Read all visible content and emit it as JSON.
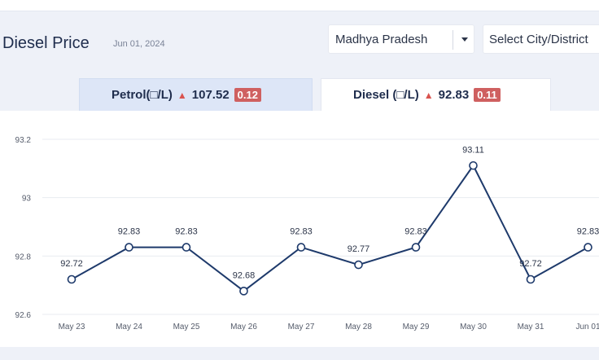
{
  "header": {
    "title": "Diesel Price",
    "date": "Jun 01, 2024"
  },
  "filters": {
    "state": "Madhya Pradesh",
    "city_placeholder": "Select City/District"
  },
  "tabs": [
    {
      "label": "Petrol(□/L)",
      "price": "107.52",
      "change": "0.12",
      "active": false
    },
    {
      "label": "Diesel (□/L)",
      "price": "92.83",
      "change": "0.11",
      "active": true
    }
  ],
  "colors": {
    "line": "#1e3a6b",
    "badge": "#cf6060",
    "up_arrow": "#d9534f"
  },
  "chart_data": {
    "type": "line",
    "categories": [
      "May 23",
      "May 24",
      "May 25",
      "May 26",
      "May 27",
      "May 28",
      "May 29",
      "May 30",
      "May 31",
      "Jun 01"
    ],
    "values": [
      92.72,
      92.83,
      92.83,
      92.68,
      92.83,
      92.77,
      92.83,
      93.11,
      92.72,
      92.83
    ],
    "value_labels": [
      "92.72",
      "92.83",
      "92.83",
      "92.68",
      "92.83",
      "92.77",
      "92.83",
      "93.11",
      "92.72",
      "92.83"
    ],
    "yticks": [
      "92.6",
      "92.8",
      "93",
      "93.2"
    ],
    "ylim": [
      92.6,
      93.2
    ],
    "grid": true,
    "title": "",
    "xlabel": "",
    "ylabel": ""
  }
}
